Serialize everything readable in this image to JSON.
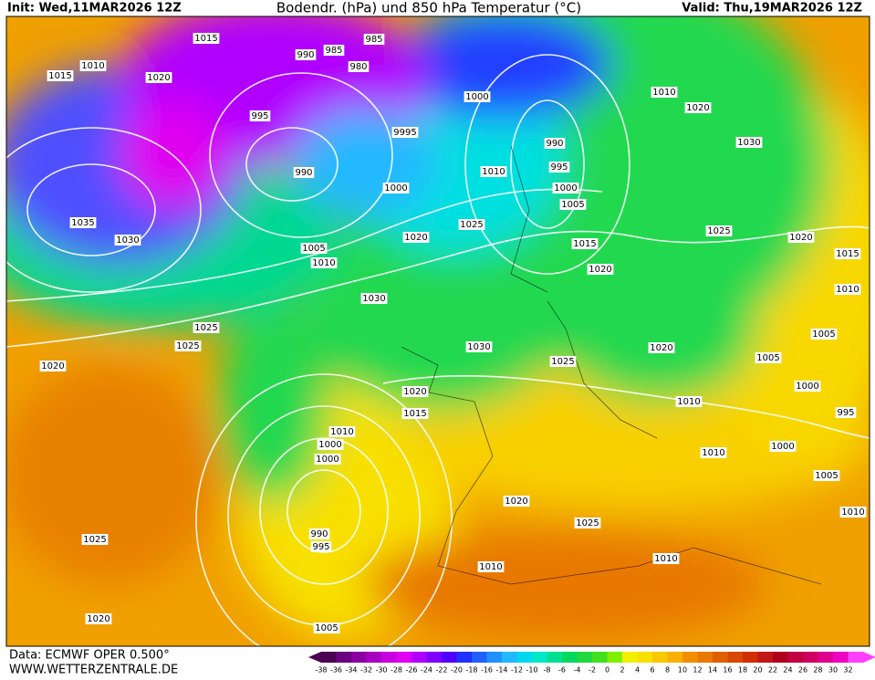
{
  "header": {
    "init": "Init: Wed,11MAR2026 12Z",
    "title": "Bodendr. (hPa) und 850 hPa Temperatur (°C)",
    "valid": "Valid: Thu,19MAR2026 12Z"
  },
  "footer": {
    "data": "Data: ECMWF OPER 0.500°",
    "site": "WWW.WETTERZENTRALE.DE"
  },
  "legend": {
    "labels": [
      -38,
      -36,
      -34,
      -32,
      -30,
      -28,
      -26,
      -24,
      -22,
      -20,
      -18,
      -16,
      -14,
      -12,
      -10,
      -8,
      -6,
      -4,
      -2,
      0,
      2,
      4,
      6,
      8,
      10,
      12,
      14,
      16,
      18,
      20,
      22,
      24,
      26,
      28,
      30,
      32
    ],
    "colors": [
      "#4b0050",
      "#6a0080",
      "#8a00a0",
      "#a800c0",
      "#c800e0",
      "#e000f0",
      "#b000ff",
      "#8000ff",
      "#5000ff",
      "#2030ff",
      "#2060ff",
      "#2090ff",
      "#20b8ff",
      "#00d8f0",
      "#00e8c8",
      "#00e090",
      "#00d860",
      "#20d840",
      "#40e020",
      "#80f000",
      "#f0f000",
      "#f8e000",
      "#f8c800",
      "#f8b000",
      "#f09000",
      "#e87800",
      "#e06000",
      "#d84800",
      "#d03000",
      "#c01818",
      "#b00020",
      "#c00040",
      "#d00060",
      "#e00090",
      "#f000c0",
      "#ff40ff"
    ]
  },
  "isobar_labels": [
    "1015",
    "1010",
    "1015",
    "1020",
    "990",
    "985",
    "985",
    "980",
    "995",
    "9995",
    "990",
    "1000",
    "1035",
    "1030",
    "1005",
    "1010",
    "1020",
    "1030",
    "1025",
    "1025",
    "1020",
    "1000",
    "1010",
    "1020",
    "1030",
    "990",
    "995",
    "1010",
    "1000",
    "1005",
    "1025",
    "1025",
    "1020",
    "1015",
    "1010",
    "1015",
    "1020",
    "1030",
    "1025",
    "1020",
    "1005",
    "1005",
    "1000",
    "995",
    "1020",
    "1015",
    "1010",
    "1010",
    "1000",
    "1000",
    "1010",
    "1000",
    "1005",
    "1020",
    "1025",
    "1010",
    "1025",
    "990",
    "995",
    "1010",
    "1010",
    "1020",
    "1005"
  ]
}
